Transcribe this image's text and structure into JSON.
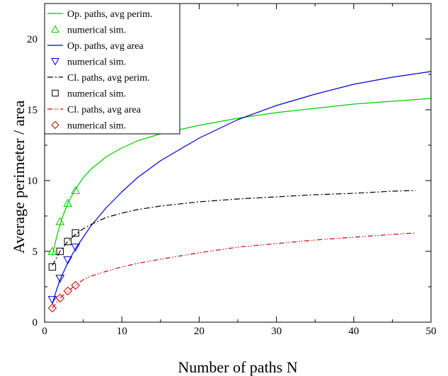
{
  "chart_data": {
    "type": "line",
    "xlabel": "Number of paths N",
    "ylabel": "Average perimeter / area",
    "xlim": [
      0,
      50
    ],
    "ylim": [
      0,
      22.5
    ],
    "xticks": [
      0,
      10,
      20,
      30,
      40,
      50
    ],
    "yticks": [
      0,
      5,
      10,
      15,
      20
    ],
    "grid": false,
    "legend_position": "top-left",
    "series": [
      {
        "name": "Op. paths, avg perim.",
        "kind": "line",
        "color": "#00cc00",
        "dash": "solid",
        "x": [
          1,
          1.5,
          2,
          2.5,
          3,
          3.5,
          4,
          5,
          6,
          8,
          10,
          12,
          15,
          20,
          25,
          30,
          35,
          40,
          45,
          50
        ],
        "y": [
          4.7,
          5.9,
          6.9,
          7.7,
          8.4,
          8.9,
          9.4,
          10.2,
          10.8,
          11.7,
          12.3,
          12.8,
          13.3,
          13.9,
          14.4,
          14.8,
          15.1,
          15.4,
          15.6,
          15.8
        ]
      },
      {
        "name": "numerical sim.",
        "kind": "marker",
        "marker": "triangle-up",
        "color": "#00cc00",
        "x": [
          1,
          2,
          3,
          4
        ],
        "y": [
          5.0,
          7.1,
          8.4,
          9.3
        ]
      },
      {
        "name": "Op. paths, avg area",
        "kind": "line",
        "color": "#0000cc",
        "dash": "solid",
        "x": [
          1,
          1.5,
          2,
          3,
          4,
          5,
          6,
          8,
          10,
          12,
          15,
          20,
          25,
          30,
          35,
          40,
          45,
          50
        ],
        "y": [
          1.3,
          2.2,
          3.0,
          4.2,
          5.2,
          6.0,
          6.8,
          8.1,
          9.2,
          10.2,
          11.4,
          13.0,
          14.3,
          15.3,
          16.1,
          16.8,
          17.3,
          17.7
        ]
      },
      {
        "name": "numerical sim.",
        "kind": "marker",
        "marker": "triangle-down",
        "color": "#0000cc",
        "x": [
          1,
          2,
          3,
          4
        ],
        "y": [
          1.6,
          3.1,
          4.4,
          5.3
        ]
      },
      {
        "name": "Cl. paths, avg perim.",
        "kind": "line",
        "color": "#000000",
        "dash": "dashdot",
        "x": [
          1,
          2,
          3,
          4,
          5,
          6,
          8,
          10,
          12,
          15,
          20,
          25,
          30,
          35,
          40,
          45,
          48
        ],
        "y": [
          4.0,
          5.0,
          5.7,
          6.2,
          6.6,
          6.9,
          7.4,
          7.7,
          7.95,
          8.2,
          8.5,
          8.7,
          8.85,
          9.0,
          9.1,
          9.25,
          9.3
        ]
      },
      {
        "name": "numerical sim.",
        "kind": "marker",
        "marker": "square",
        "color": "#000000",
        "x": [
          1,
          2,
          3,
          4
        ],
        "y": [
          3.9,
          5.0,
          5.7,
          6.3
        ]
      },
      {
        "name": "Cl. paths, avg area",
        "kind": "line",
        "color": "#cc0000",
        "dash": "dashdotdot",
        "x": [
          1,
          2,
          3,
          4,
          5,
          6,
          8,
          10,
          12,
          15,
          20,
          25,
          30,
          35,
          40,
          45,
          48
        ],
        "y": [
          1.0,
          1.7,
          2.2,
          2.6,
          3.0,
          3.25,
          3.6,
          3.9,
          4.15,
          4.45,
          4.9,
          5.3,
          5.55,
          5.8,
          6.0,
          6.2,
          6.3
        ]
      },
      {
        "name": "numerical sim.",
        "kind": "marker",
        "marker": "diamond",
        "color": "#cc0000",
        "x": [
          1,
          2,
          3,
          4
        ],
        "y": [
          1.0,
          1.7,
          2.2,
          2.6
        ]
      }
    ]
  }
}
